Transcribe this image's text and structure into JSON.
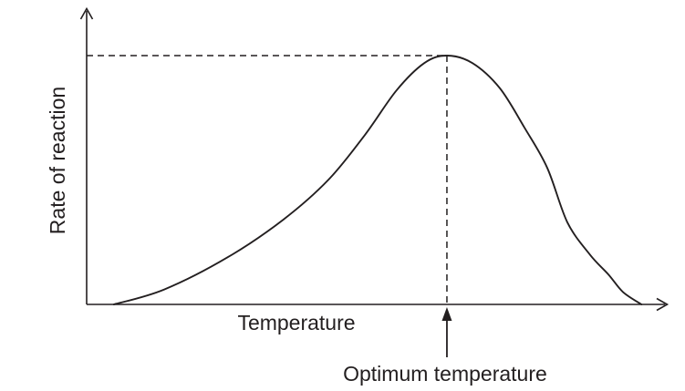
{
  "colors": {
    "ink": "#231f20",
    "background": "#ffffff"
  },
  "labels": {
    "y_axis": "Rate of reaction",
    "x_axis": "Temperature",
    "annotation": "Optimum temperature"
  },
  "chart_data": {
    "type": "line",
    "title": "",
    "xlabel": "Temperature",
    "ylabel": "Rate of reaction",
    "axes_style": "qualitative, unlabeled arrows on both axes, no tick marks, no gridlines",
    "x_range": [
      0,
      100
    ],
    "y_range": [
      0,
      1
    ],
    "series": [
      {
        "name": "rate-of-reaction-vs-temperature",
        "x_percent": [
          4.7,
          13.4,
          24.4,
          33.9,
          41.7,
          48.0,
          53.5,
          58.3,
          62.2,
          66.6,
          71.3,
          75.6,
          79.5,
          83.0,
          86.9,
          90.1,
          92.6,
          95.8
        ],
        "rate_relative": [
          0.0,
          0.06,
          0.19,
          0.34,
          0.5,
          0.68,
          0.86,
          0.97,
          1.0,
          0.97,
          0.87,
          0.71,
          0.55,
          0.33,
          0.2,
          0.12,
          0.05,
          0.0
        ]
      }
    ],
    "peak": {
      "x_percent": 62.2,
      "rate_relative": 1.0,
      "label": "Optimum temperature"
    },
    "guides": [
      {
        "type": "horizontal-dashed",
        "from": "y-axis",
        "to": "curve peak"
      },
      {
        "type": "vertical-dashed",
        "from": "curve peak",
        "to": "x-axis"
      }
    ],
    "annotations": [
      {
        "text": "Optimum temperature",
        "style": "filled up-arrow pointing at x-axis below the peak"
      }
    ],
    "legend": "none"
  }
}
